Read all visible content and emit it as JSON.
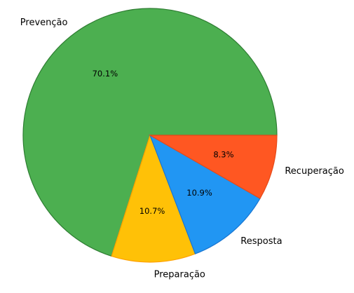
{
  "chart_data": {
    "type": "pie",
    "categories": [
      "Prevenção",
      "Preparação",
      "Resposta",
      "Recuperação"
    ],
    "values": [
      70.1,
      10.7,
      10.9,
      8.3
    ],
    "value_labels": [
      "70.1%",
      "10.7%",
      "10.9%",
      "8.3%"
    ],
    "colors": [
      "#4caf50",
      "#ffc107",
      "#2196f3",
      "#ff5722"
    ],
    "edge_colors": [
      "#2e7d32",
      "#ffa000",
      "#1976d2",
      "#e64a19"
    ]
  }
}
